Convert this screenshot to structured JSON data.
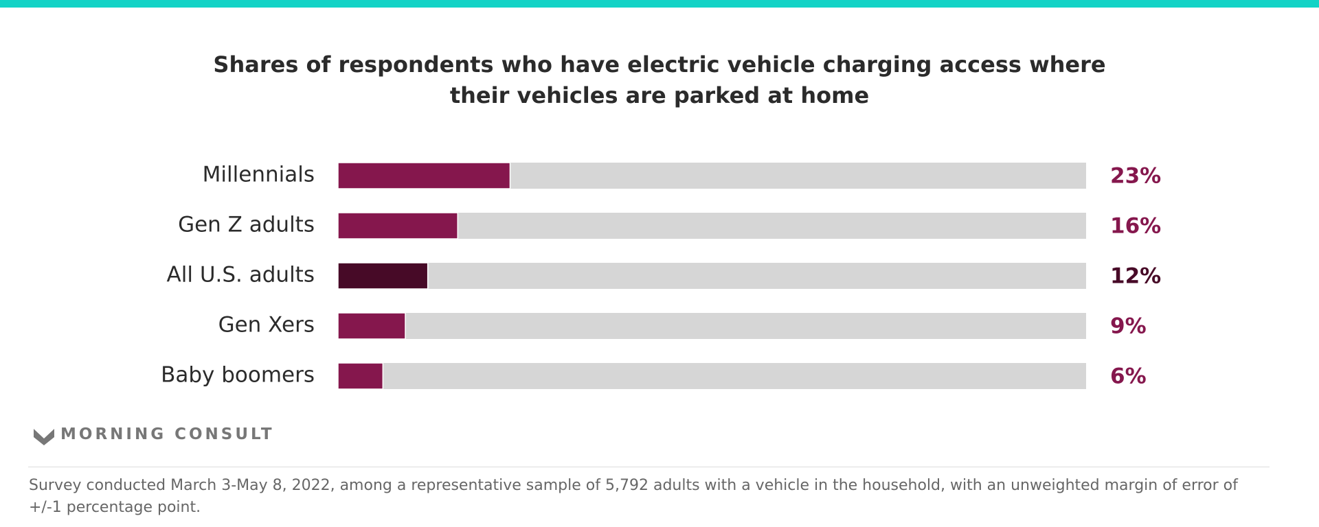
{
  "chart_data": {
    "type": "hbar",
    "title": "Shares of respondents who have electric vehicle charging access where their vehicles are parked at home",
    "categories": [
      "Millennials",
      "Gen Z adults",
      "All U.S. adults",
      "Gen Xers",
      "Baby boomers"
    ],
    "values": [
      23,
      16,
      12,
      9,
      6
    ],
    "value_labels": [
      "23%",
      "16%",
      "12%",
      "9%",
      "6%"
    ],
    "colors": [
      "#85174d",
      "#85174d",
      "#470a27",
      "#85174d",
      "#85174d"
    ],
    "xlim": [
      0,
      100
    ],
    "brand": "MORNING CONSULT",
    "footnote": "Survey conducted March 3-May 8, 2022, among a representative sample of 5,792 adults with a vehicle in the household, with an unweighted margin of error of +/-1 percentage point."
  }
}
